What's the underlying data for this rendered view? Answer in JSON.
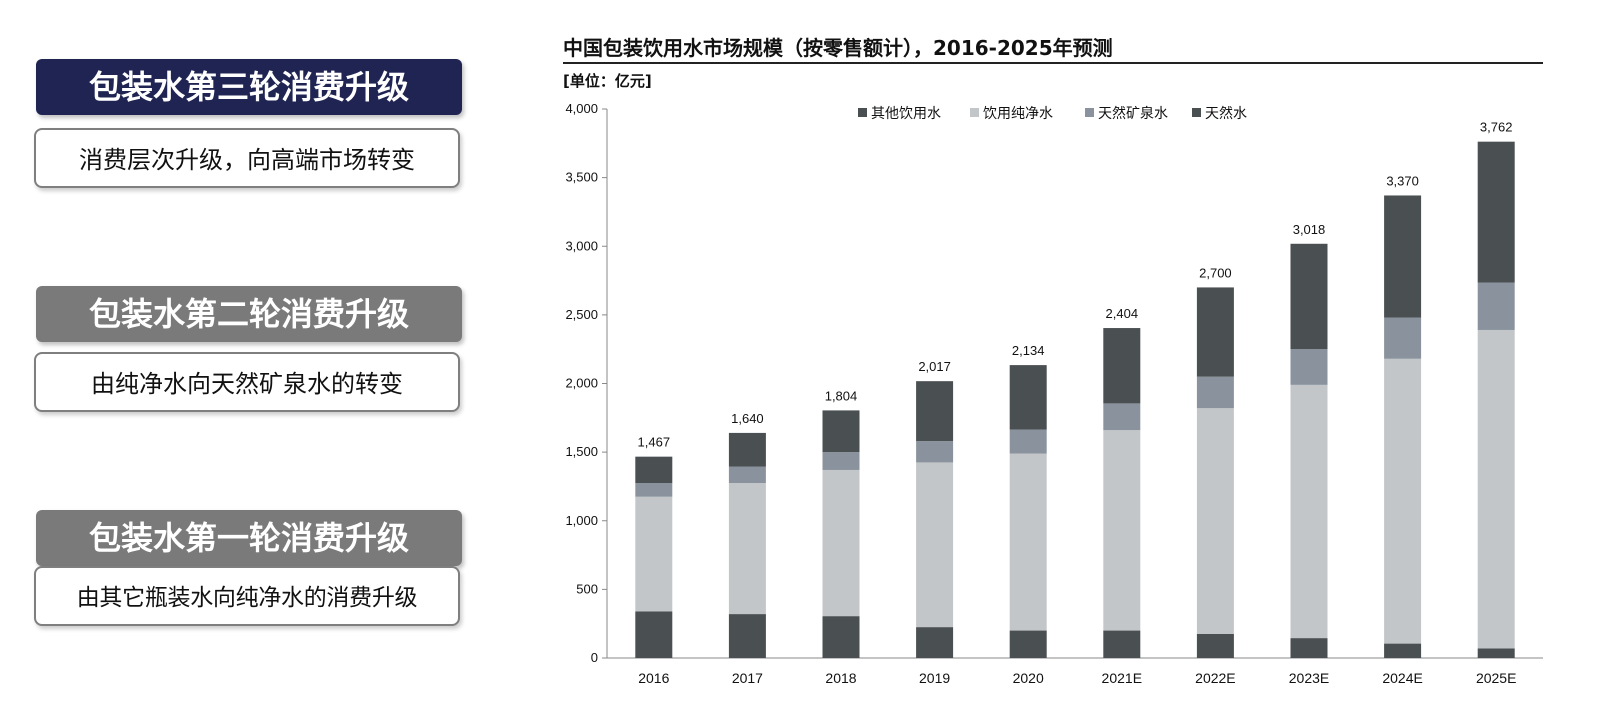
{
  "stages": [
    {
      "title": "包装水第三轮消费升级",
      "desc": "消费层次升级，向高端市场转变",
      "header_color": "#1f2452"
    },
    {
      "title": "包装水第二轮消费升级",
      "desc": "由纯净水向天然矿泉水的转变",
      "header_color": "#7a7a7a"
    },
    {
      "title": "包装水第一轮消费升级",
      "desc": "由其它瓶装水向纯净水的消费升级",
      "header_color": "#7a7a7a"
    }
  ],
  "chart_data": {
    "type": "bar",
    "stacked": true,
    "title": "中国包装饮用水市场规模（按零售额计），2016-2025年预测",
    "unit": "[单位：亿元]",
    "categories": [
      "2016",
      "2017",
      "2018",
      "2019",
      "2020",
      "2021E",
      "2022E",
      "2023E",
      "2024E",
      "2025E"
    ],
    "ylim": [
      0,
      4000
    ],
    "yticks": [
      0,
      500,
      1000,
      1500,
      2000,
      2500,
      3000,
      3500,
      4000
    ],
    "ytick_labels": [
      "0",
      "500",
      "1,000",
      "1,500",
      "2,000",
      "2,500",
      "3,000",
      "3,500",
      "4,000"
    ],
    "totals": [
      1467,
      1640,
      1804,
      2017,
      2134,
      2404,
      2700,
      3018,
      3370,
      3762
    ],
    "total_labels": [
      "1,467",
      "1,640",
      "1,804",
      "2,017",
      "2,134",
      "2,404",
      "2,700",
      "3,018",
      "3,370",
      "3,762"
    ],
    "legend": [
      "其他饮用水",
      "饮用纯净水",
      "天然矿泉水",
      "天然水"
    ],
    "legend_position": "top",
    "series": [
      {
        "name": "其他饮用水",
        "color": "#4a4f52",
        "values": [
          340,
          320,
          305,
          225,
          200,
          200,
          175,
          145,
          105,
          70
        ]
      },
      {
        "name": "饮用纯净水",
        "color": "#c3c6c8",
        "values": [
          835,
          955,
          1065,
          1200,
          1290,
          1460,
          1645,
          1845,
          2075,
          2320
        ]
      },
      {
        "name": "天然矿泉水",
        "color": "#8a939d",
        "values": [
          100,
          120,
          130,
          155,
          175,
          195,
          230,
          260,
          300,
          345
        ]
      },
      {
        "name": "天然水",
        "color": "#4a4f52",
        "values": [
          192,
          245,
          304,
          437,
          469,
          549,
          650,
          768,
          890,
          1027
        ]
      }
    ]
  }
}
